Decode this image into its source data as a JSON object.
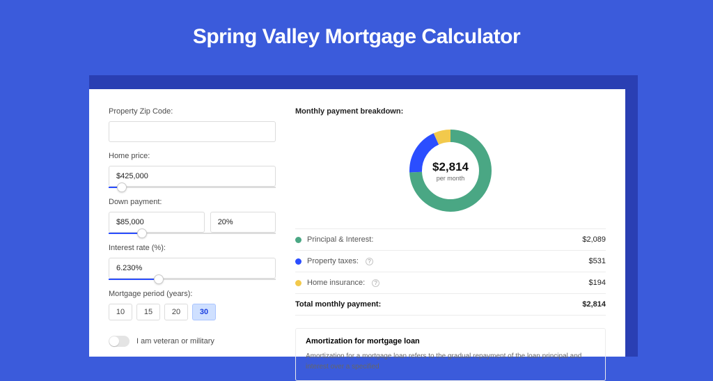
{
  "page": {
    "title": "Spring Valley Mortgage Calculator",
    "bg_color": "#3b5bdb",
    "shadow_color": "#2a3fb3",
    "card_bg": "#ffffff"
  },
  "form": {
    "zip": {
      "label": "Property Zip Code:",
      "value": ""
    },
    "home_price": {
      "label": "Home price:",
      "value": "$425,000",
      "slider_pct": 8
    },
    "down_payment": {
      "label": "Down payment:",
      "amount": "$85,000",
      "pct": "20%",
      "slider_pct": 20
    },
    "interest": {
      "label": "Interest rate (%):",
      "value": "6.230%",
      "slider_pct": 30
    },
    "period": {
      "label": "Mortgage period (years):",
      "options": [
        "10",
        "15",
        "20",
        "30"
      ],
      "selected": "30"
    },
    "veteran": {
      "label": "I am veteran or military",
      "value": false
    }
  },
  "breakdown": {
    "title": "Monthly payment breakdown:",
    "center_amount": "$2,814",
    "center_sub": "per month",
    "items": [
      {
        "label": "Principal & Interest:",
        "value": "$2,089",
        "color": "#4aa784",
        "fraction": 0.742,
        "help": false
      },
      {
        "label": "Property taxes:",
        "value": "$531",
        "color": "#2b4eff",
        "fraction": 0.189,
        "help": true
      },
      {
        "label": "Home insurance:",
        "value": "$194",
        "color": "#f2c94c",
        "fraction": 0.069,
        "help": true
      }
    ],
    "total": {
      "label": "Total monthly payment:",
      "value": "$2,814"
    },
    "donut": {
      "stroke_width": 18,
      "radius": 50
    }
  },
  "amortization": {
    "title": "Amortization for mortgage loan",
    "body": "Amortization for a mortgage loan refers to the gradual repayment of the loan principal and interest over a specified"
  }
}
